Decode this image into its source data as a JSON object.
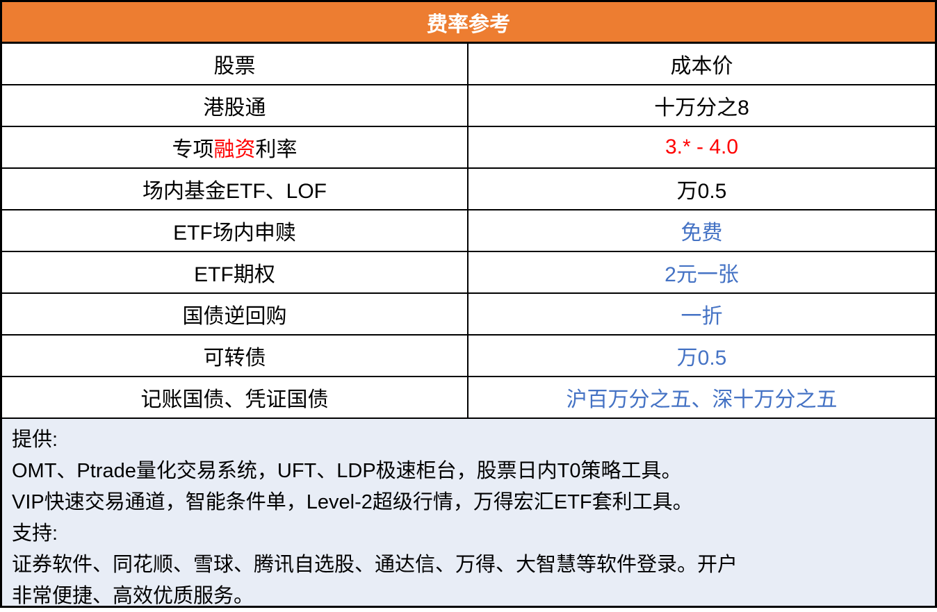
{
  "title": "费率参考",
  "header": {
    "col1": "股票",
    "col2": "成本价"
  },
  "rows": [
    {
      "name": "港股通",
      "value": "十万分之8",
      "value_color": "black"
    },
    {
      "name_parts": [
        "专项",
        "融资",
        "利率"
      ],
      "value": "3.* - 4.0",
      "value_color": "red"
    },
    {
      "name": "场内基金ETF、LOF",
      "value": "万0.5",
      "value_color": "black"
    },
    {
      "name": "ETF场内申赎",
      "value": "免费",
      "value_color": "blue"
    },
    {
      "name": "ETF期权",
      "value": "2元一张",
      "value_color": "blue"
    },
    {
      "name": "国债逆回购",
      "value": "一折",
      "value_color": "blue"
    },
    {
      "name": "可转债",
      "value": "万0.5",
      "value_color": "blue"
    },
    {
      "name": "记账国债、凭证国债",
      "value": "沪百万分之五、深十万分之五",
      "value_color": "blue"
    }
  ],
  "footer": {
    "lines": [
      "提供:",
      "OMT、Ptrade量化交易系统，UFT、LDP极速柜台，股票日内T0策略工具。",
      "VIP快速交易通道，智能条件单，Level-2超级行情，万得宏汇ETF套利工具。",
      "支持:",
      "证券软件、同花顺、雪球、腾讯自选股、通达信、万得、大智慧等软件登录。开户",
      "非常便捷、高效优质服务。"
    ]
  },
  "colors": {
    "header_bg": "#ed7d31",
    "red": "#ff0000",
    "blue": "#4472c4",
    "footer_bg": "#e8edf6"
  }
}
